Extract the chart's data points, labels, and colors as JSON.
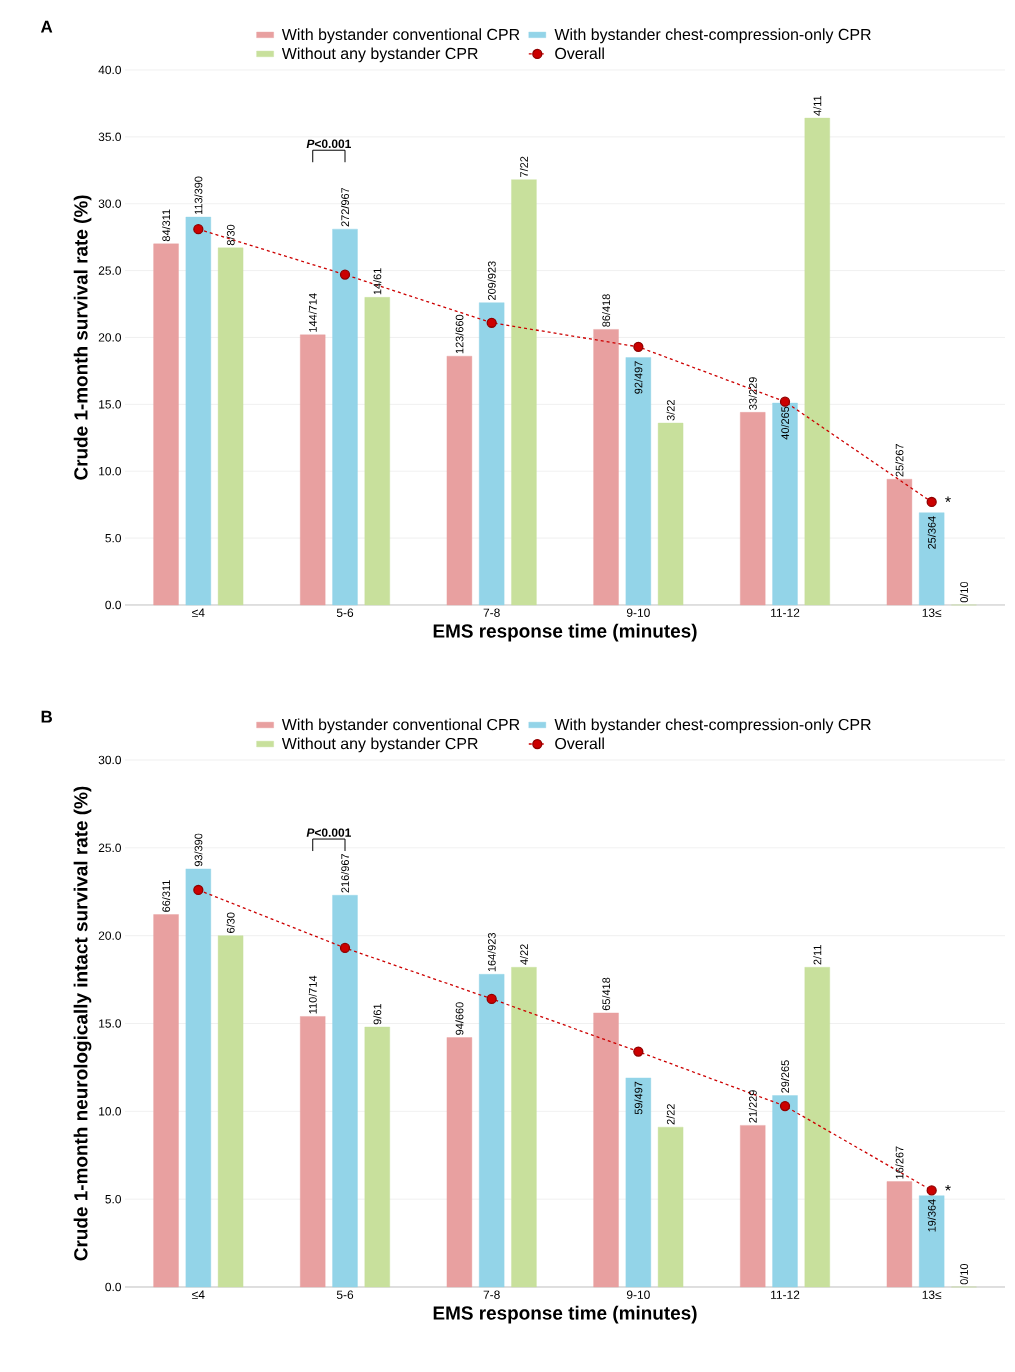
{
  "chart_data": [
    {
      "type": "bar",
      "title": "A",
      "xlabel": "EMS response time (minutes)",
      "ylabel": "Crude 1-month survival rate (%)",
      "categories": [
        "≤4",
        "5-6",
        "7-8",
        "9-10",
        "11-12",
        "13≤"
      ],
      "series": [
        {
          "name": "With bystander conventional CPR",
          "color": "#e8a0a0",
          "values": [
            27.0,
            20.2,
            18.6,
            20.6,
            14.4,
            9.4
          ],
          "value_labels": [
            "84/311",
            "144/714",
            "123/660",
            "86/418",
            "33/229",
            "25/267"
          ]
        },
        {
          "name": "With bystander chest-compression-only CPR",
          "color": "#93d4e8",
          "values": [
            29.0,
            28.1,
            22.6,
            18.5,
            15.1,
            6.9
          ],
          "value_labels": [
            "113/390",
            "272/967",
            "209/923",
            "92/497",
            "40/265",
            "25/364"
          ]
        },
        {
          "name": "Without any bystander CPR",
          "color": "#c8e09c",
          "values": [
            26.7,
            23.0,
            31.8,
            13.6,
            36.4,
            0.0
          ],
          "value_labels": [
            "8/30",
            "14/61",
            "7/22",
            "3/22",
            "4/11",
            "0/10"
          ]
        },
        {
          "name": "Overall",
          "type": "line",
          "color": "#cc0000",
          "values": [
            28.1,
            24.7,
            21.1,
            19.3,
            15.2,
            7.7
          ]
        }
      ],
      "ylim": [
        0,
        40
      ],
      "yticks": [
        {
          "value": 0,
          "label": "0.0"
        },
        {
          "value": 5,
          "label": "5.0"
        },
        {
          "value": 10,
          "label": "10.0"
        },
        {
          "value": 15,
          "label": "15.0"
        },
        {
          "value": 20,
          "label": "20.0"
        },
        {
          "value": 25,
          "label": "25.0"
        },
        {
          "value": 30,
          "label": "30.0"
        },
        {
          "value": 35,
          "label": "35.0"
        },
        {
          "value": 40,
          "label": "40.0"
        }
      ],
      "grid": "y",
      "legend": "top",
      "marker": "circle",
      "line_style": "dashed",
      "annotations": [
        "*P*<0.001",
        {
          "text": "*",
          "x": "13≤",
          "y": 7.7
        }
      ]
    },
    {
      "type": "bar",
      "title": "B",
      "xlabel": "EMS response time (minutes)",
      "ylabel": "Crude 1-month neurologically intact survival rate (%)",
      "categories": [
        "≤4",
        "5-6",
        "7-8",
        "9-10",
        "11-12",
        "13≤"
      ],
      "series": [
        {
          "name": "With bystander conventional CPR",
          "color": "#e8a0a0",
          "values": [
            21.2,
            15.4,
            14.2,
            15.6,
            9.2,
            6.0
          ],
          "value_labels": [
            "66/311",
            "110/714",
            "94/660",
            "65/418",
            "21/229",
            "16/267"
          ]
        },
        {
          "name": "With bystander chest-compression-only CPR",
          "color": "#93d4e8",
          "values": [
            23.8,
            22.3,
            17.8,
            11.9,
            10.9,
            5.2
          ],
          "value_labels": [
            "93/390",
            "216/967",
            "164/923",
            "59/497",
            "29/265",
            "19/364"
          ]
        },
        {
          "name": "Without any bystander CPR",
          "color": "#c8e09c",
          "values": [
            20.0,
            14.8,
            18.2,
            9.1,
            18.2,
            0.0
          ],
          "value_labels": [
            "6/30",
            "9/61",
            "4/22",
            "2/22",
            "2/11",
            "0/10"
          ]
        },
        {
          "name": "Overall",
          "type": "line",
          "color": "#cc0000",
          "values": [
            22.6,
            19.3,
            16.4,
            13.4,
            10.3,
            5.5
          ]
        }
      ],
      "ylim": [
        0,
        30
      ],
      "yticks": [
        {
          "value": 0,
          "label": "0.0"
        },
        {
          "value": 5,
          "label": "5.0"
        },
        {
          "value": 10,
          "label": "10.0"
        },
        {
          "value": 15,
          "label": "15.0"
        },
        {
          "value": 20,
          "label": "20.0"
        },
        {
          "value": 25,
          "label": "25.0"
        },
        {
          "value": 30,
          "label": "30.0"
        }
      ],
      "grid": "y",
      "legend": "top",
      "marker": "circle",
      "line_style": "dashed",
      "annotations": [
        "*P*<0.001",
        {
          "text": "*",
          "x": "13≤",
          "y": 5.5
        }
      ]
    }
  ]
}
